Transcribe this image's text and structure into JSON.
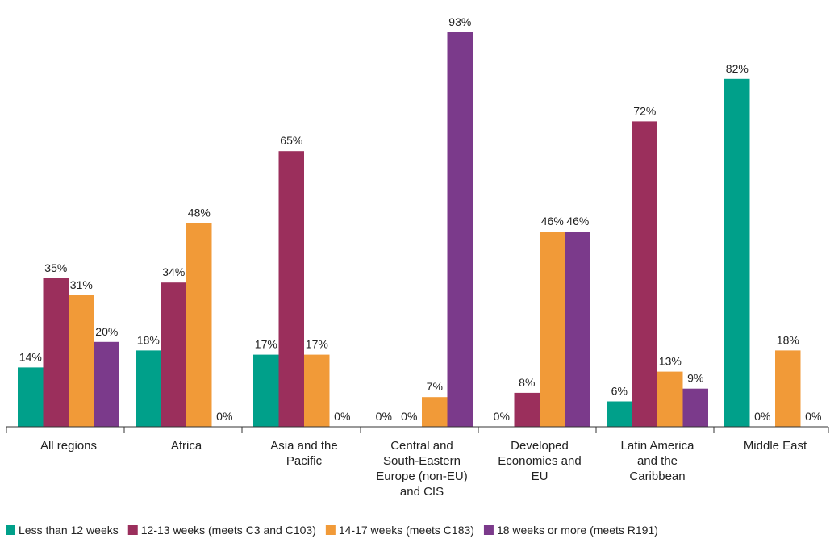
{
  "chart_data": {
    "type": "bar",
    "title": "",
    "xlabel": "",
    "ylabel": "",
    "ylim": [
      0,
      100
    ],
    "grid": false,
    "legend_position": "bottom",
    "value_format": "percent",
    "categories": [
      [
        "All regions"
      ],
      [
        "Africa"
      ],
      [
        "Asia and the",
        "Pacific"
      ],
      [
        "Central and",
        "South-Eastern",
        "Europe (non-EU)",
        "and CIS"
      ],
      [
        "Developed",
        "Economies and",
        "EU"
      ],
      [
        "Latin America",
        "and the",
        "Caribbean"
      ],
      [
        "Middle East"
      ]
    ],
    "series": [
      {
        "name": "Less than 12 weeks",
        "color": "#00a08a",
        "values": [
          14,
          18,
          17,
          0,
          0,
          6,
          82
        ]
      },
      {
        "name": "12-13 weeks (meets C3 and C103)",
        "color": "#9b2f5c",
        "values": [
          35,
          34,
          65,
          0,
          8,
          72,
          0
        ]
      },
      {
        "name": "14-17 weeks (meets C183)",
        "color": "#f19a38",
        "values": [
          31,
          48,
          17,
          7,
          46,
          13,
          18
        ]
      },
      {
        "name": "18 weeks or more (meets R191)",
        "color": "#7b3a8b",
        "values": [
          20,
          0,
          0,
          93,
          46,
          9,
          0
        ]
      }
    ],
    "value_labels": [
      [
        "14%",
        "35%",
        "31%",
        "20%"
      ],
      [
        "18%",
        "34%",
        "48%",
        "0%"
      ],
      [
        "17%",
        "65%",
        "17%",
        "0%"
      ],
      [
        "0%",
        "0%",
        "7%",
        "93%"
      ],
      [
        "0%",
        "8%",
        "46%",
        "46%"
      ],
      [
        "6%",
        "72%",
        "13%",
        "9%"
      ],
      [
        "82%",
        "0%",
        "18%",
        "0%"
      ]
    ]
  }
}
